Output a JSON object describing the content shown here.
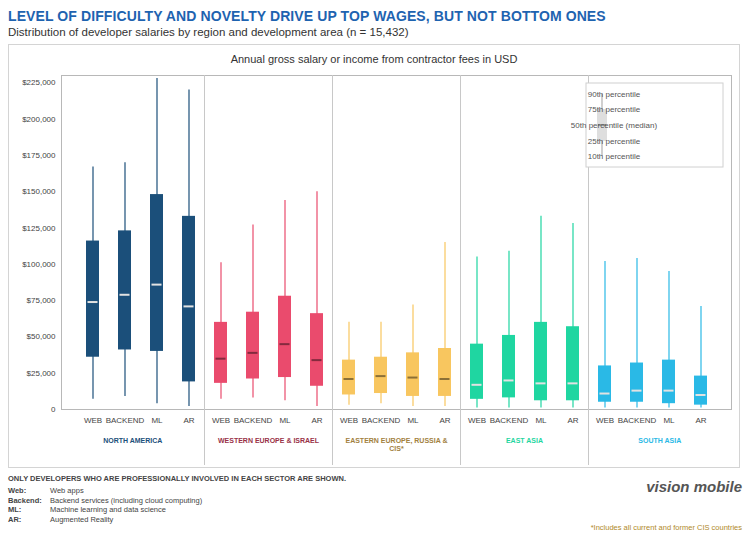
{
  "chart_data": {
    "type": "box",
    "title": "LEVEL OF DIFFICULTY AND NOVELTY DRIVE UP TOP WAGES, BUT NOT BOTTOM ONES",
    "subtitle": "Distribution of developer salaries by region and development area (n = 15,432)",
    "y_label": "Annual gross salary or income from contractor fees in USD",
    "categories": [
      "WEB",
      "BACKEND",
      "ML",
      "AR"
    ],
    "groups": [
      {
        "name": "NORTH AMERICA",
        "color": "#1b4f7a",
        "p10": [
          7000,
          9000,
          4000,
          2000
        ],
        "p25": [
          36000,
          41000,
          40000,
          19000
        ],
        "median": [
          74000,
          79000,
          86000,
          71000
        ],
        "p75": [
          116000,
          123000,
          148000,
          133000
        ],
        "p90": [
          167000,
          170000,
          228000,
          220000
        ]
      },
      {
        "name": "WESTERN EUROPE & ISRAEL",
        "color": "#ea4b6d",
        "p10": [
          7000,
          8000,
          6000,
          2000
        ],
        "p25": [
          18000,
          21000,
          22000,
          16000
        ],
        "median": [
          35000,
          39000,
          45000,
          34000
        ],
        "p75": [
          60000,
          67000,
          78000,
          66000
        ],
        "p90": [
          101000,
          127000,
          144000,
          150000
        ]
      },
      {
        "name": "EASTERN EUROPE, RUSSIA & CIS*",
        "color": "#f8c65f",
        "p10": [
          3000,
          4000,
          2000,
          2000
        ],
        "p25": [
          10000,
          11000,
          9000,
          9000
        ],
        "median": [
          21000,
          23000,
          22000,
          21000
        ],
        "p75": [
          34000,
          36000,
          39000,
          42000
        ],
        "p90": [
          60000,
          60000,
          72000,
          115000
        ]
      },
      {
        "name": "EAST ASIA",
        "color": "#1fd6a1",
        "p10": [
          1000,
          1000,
          1000,
          1000
        ],
        "p25": [
          7000,
          8000,
          6000,
          6000
        ],
        "median": [
          17000,
          20000,
          18000,
          18000
        ],
        "p75": [
          45000,
          51000,
          60000,
          57000
        ],
        "p90": [
          105000,
          109000,
          133000,
          128000
        ]
      },
      {
        "name": "SOUTH ASIA",
        "color": "#2ab9e6",
        "p10": [
          1000,
          1000,
          1000,
          1000
        ],
        "p25": [
          5000,
          5000,
          4000,
          3000
        ],
        "median": [
          11000,
          13000,
          13000,
          10000
        ],
        "p75": [
          30000,
          32000,
          34000,
          23000
        ],
        "p90": [
          102000,
          104000,
          95000,
          71000
        ]
      }
    ],
    "ylim": [
      0,
      230000
    ],
    "yticks": [
      0,
      {
        "value": 25000,
        "label": "$25,000"
      },
      {
        "value": 50000,
        "label": "$50,000"
      },
      {
        "value": 75000,
        "label": "$75,000"
      },
      {
        "value": 100000,
        "label": "$100,000"
      },
      {
        "value": 125000,
        "label": "$125,000"
      },
      {
        "value": 150000,
        "label": "$150,000"
      },
      {
        "value": 175000,
        "label": "$175,000"
      },
      {
        "value": 200000,
        "label": "$200,000"
      },
      {
        "value": 225000,
        "label": "$225,000"
      }
    ],
    "grid": false,
    "legend": "top-right",
    "legend_labels": {
      "p90": "90th percentile",
      "p75": "75th percentile",
      "median": "50th percentile (median)",
      "p25": "25th percentile",
      "p10": "10th percentile"
    },
    "note": "ONLY DEVELOPERS WHO ARE PROFESSIONALLY INVOLVED IN EACH SECTOR ARE SHOWN.",
    "definitions": [
      {
        "term": "Web:",
        "text": "Web apps"
      },
      {
        "term": "Backend:",
        "text": "Backend services (including cloud computing)"
      },
      {
        "term": "ML:",
        "text": "Machine learning and data science"
      },
      {
        "term": "AR:",
        "text": "Augmented Reality"
      }
    ],
    "footnote": "*Includes all current and former CIS countries",
    "source": "vision mobile"
  }
}
